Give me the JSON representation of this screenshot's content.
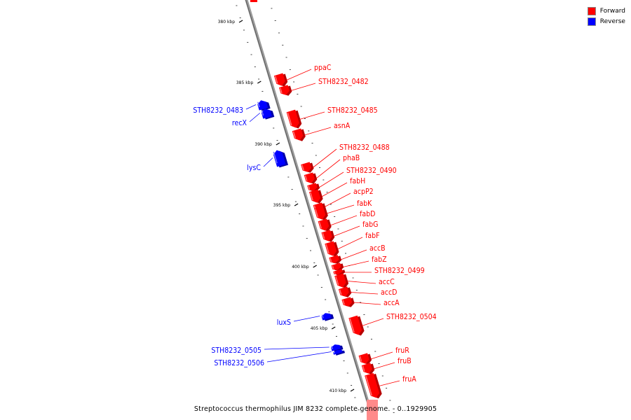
{
  "legend": {
    "items": [
      {
        "label": "Forward",
        "color": "#ff0000"
      },
      {
        "label": "Reverse",
        "color": "#0000ff"
      }
    ]
  },
  "caption": "Streptococcus thermophilus JIM 8232 complete genome. - 0..1929905",
  "ticks": [
    {
      "label": "380 kbp",
      "value": 380
    },
    {
      "label": "385 kbp",
      "value": 385
    },
    {
      "label": "390 kbp",
      "value": 390
    },
    {
      "label": "395 kbp",
      "value": 395
    },
    {
      "label": "400 kbp",
      "value": 400
    },
    {
      "label": "405 kbp",
      "value": 405
    },
    {
      "label": "410 kbp",
      "value": 410
    }
  ],
  "genes": [
    {
      "name": "ppaC",
      "strand": "forward"
    },
    {
      "name": "STH8232_0482",
      "strand": "forward"
    },
    {
      "name": "STH8232_0483",
      "strand": "reverse"
    },
    {
      "name": "recX",
      "strand": "reverse"
    },
    {
      "name": "STH8232_0485",
      "strand": "forward"
    },
    {
      "name": "asnA",
      "strand": "forward"
    },
    {
      "name": "lysC",
      "strand": "reverse"
    },
    {
      "name": "STH8232_0488",
      "strand": "forward"
    },
    {
      "name": "phaB",
      "strand": "forward"
    },
    {
      "name": "STH8232_0490",
      "strand": "forward"
    },
    {
      "name": "fabH",
      "strand": "forward"
    },
    {
      "name": "acpP2",
      "strand": "forward"
    },
    {
      "name": "fabK",
      "strand": "forward"
    },
    {
      "name": "fabD",
      "strand": "forward"
    },
    {
      "name": "fabG",
      "strand": "forward"
    },
    {
      "name": "fabF",
      "strand": "forward"
    },
    {
      "name": "accB",
      "strand": "forward"
    },
    {
      "name": "fabZ",
      "strand": "forward"
    },
    {
      "name": "STH8232_0499",
      "strand": "forward"
    },
    {
      "name": "accC",
      "strand": "forward"
    },
    {
      "name": "accD",
      "strand": "forward"
    },
    {
      "name": "accA",
      "strand": "forward"
    },
    {
      "name": "luxS",
      "strand": "reverse"
    },
    {
      "name": "STH8232_0504",
      "strand": "forward"
    },
    {
      "name": "STH8232_0505",
      "strand": "reverse"
    },
    {
      "name": "STH8232_0506",
      "strand": "reverse"
    },
    {
      "name": "fruR",
      "strand": "forward"
    },
    {
      "name": "fruB",
      "strand": "forward"
    },
    {
      "name": "fruA",
      "strand": "forward"
    }
  ]
}
